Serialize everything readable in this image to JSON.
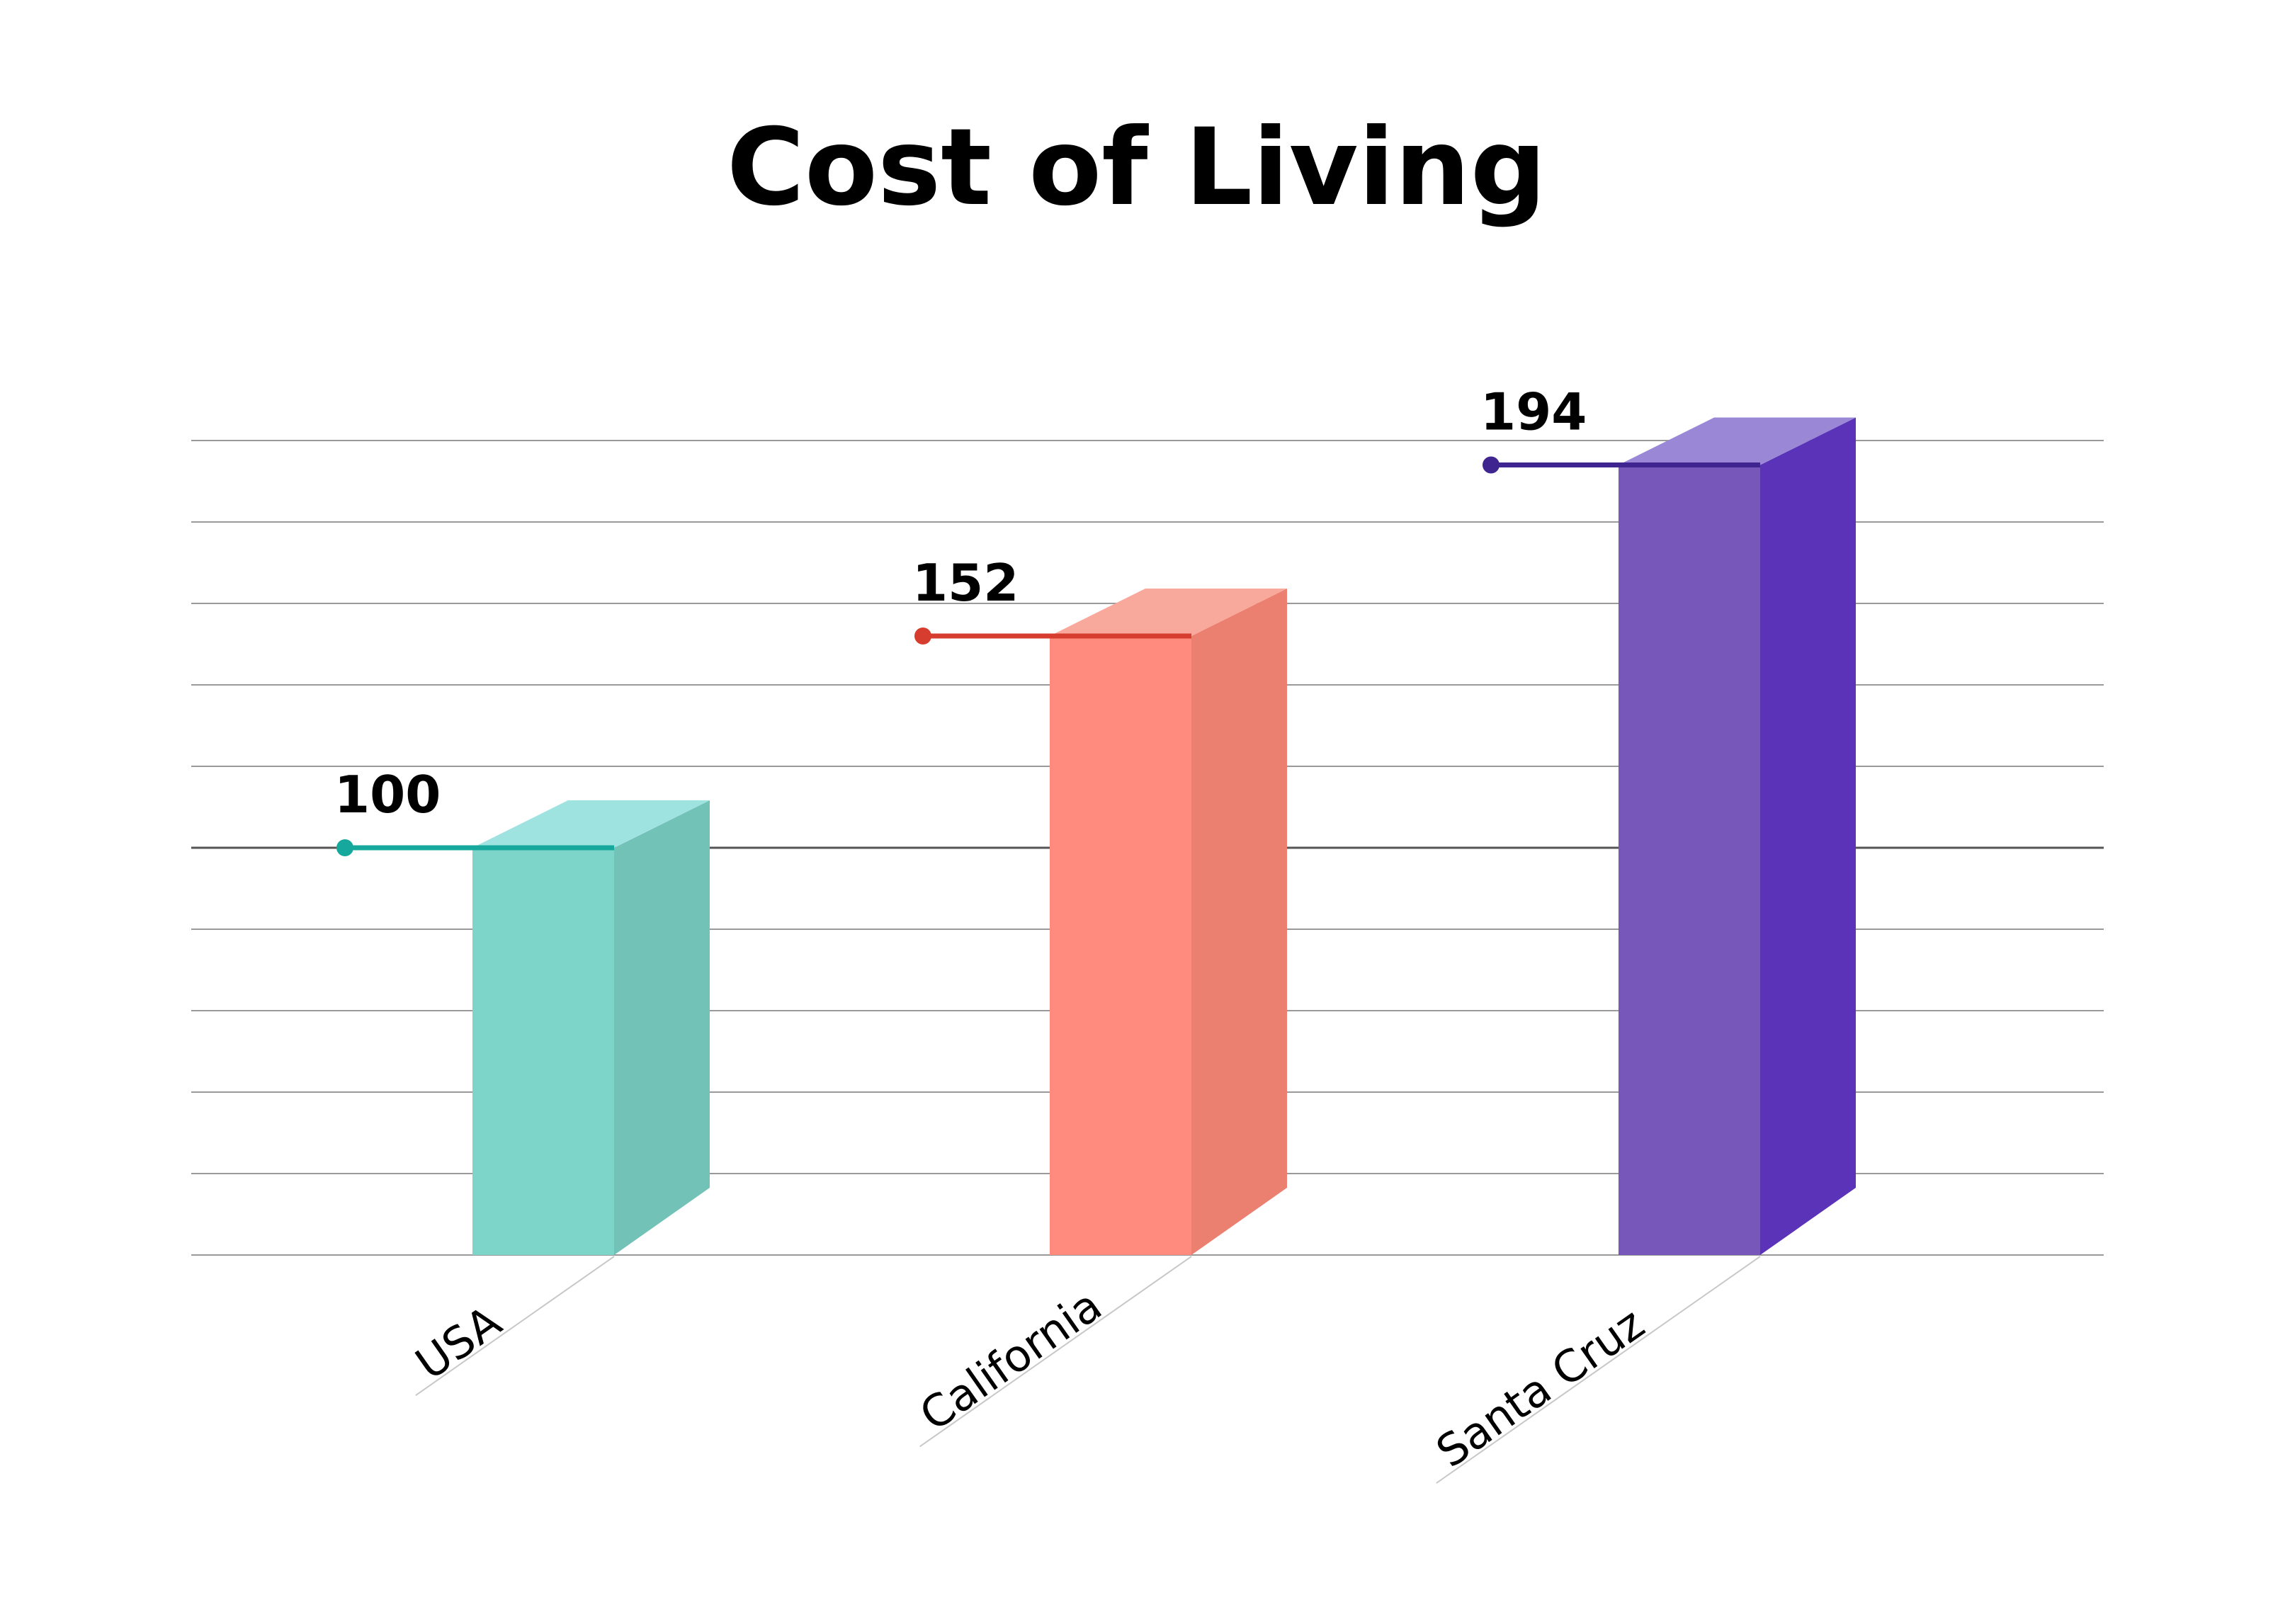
{
  "chart_data": {
    "type": "bar",
    "title": "Cost of Living",
    "categories": [
      "USA",
      "California",
      "Santa Cruz"
    ],
    "values": [
      100,
      152,
      194
    ],
    "value_labels": [
      "100",
      "152",
      "194"
    ],
    "ylim": [
      0,
      200
    ],
    "grid": true,
    "reference_value": 100,
    "colors": [
      {
        "front": "#7dd5c9",
        "side": "#72c2b7",
        "top": "#9ee3df",
        "marker": "#16a89c"
      },
      {
        "front": "#ff8a7e",
        "side": "#ec8070",
        "top": "#f9a89c",
        "marker": "#d63d2e"
      },
      {
        "front": "#7757b9",
        "side": "#5b33b8",
        "top": "#9a87d5",
        "marker": "#3f2590"
      }
    ]
  }
}
